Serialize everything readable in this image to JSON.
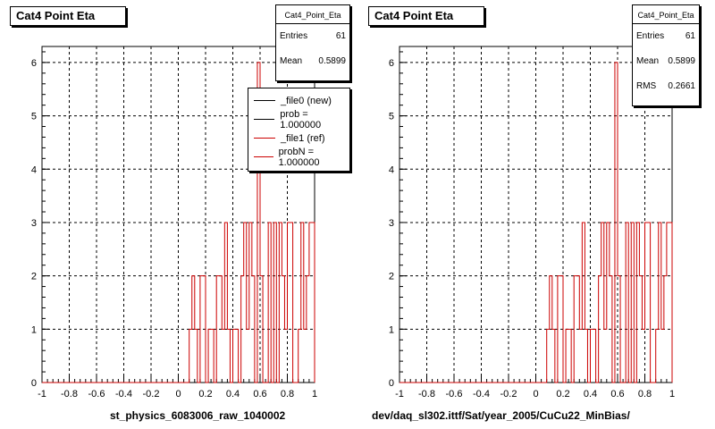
{
  "chart_data": [
    {
      "type": "bar",
      "title": "Cat4 Point Eta",
      "xlabel": "st_physics_6083006_raw_1040002",
      "ylabel": "",
      "xlim": [
        -1,
        1
      ],
      "ylim": [
        0,
        6.3
      ],
      "x_ticks": [
        "-1",
        "-0.8",
        "-0.6",
        "-0.4",
        "-0.2",
        "0",
        "0.2",
        "0.4",
        "0.6",
        "0.8",
        "1"
      ],
      "y_ticks": [
        "0",
        "1",
        "2",
        "3",
        "4",
        "5",
        "6"
      ],
      "grid": true,
      "bin_edges_start": -1,
      "bin_width": 0.02,
      "series": [
        {
          "name": "_file1 (ref)",
          "color": "#cc0000",
          "values": [
            0,
            0,
            0,
            0,
            0,
            0,
            0,
            0,
            0,
            0,
            0,
            0,
            0,
            0,
            0,
            0,
            0,
            0,
            0,
            0,
            0,
            0,
            0,
            0,
            0,
            0,
            0,
            0,
            0,
            0,
            0,
            0,
            0,
            0,
            0,
            0,
            0,
            0,
            0,
            0,
            0,
            0,
            0,
            0,
            0,
            0,
            0,
            0,
            0,
            0,
            0,
            0,
            0,
            0,
            1,
            2,
            1,
            0,
            2,
            2,
            0,
            1,
            1,
            0,
            2,
            2,
            1,
            3,
            1,
            0,
            1,
            1,
            0,
            2,
            3,
            1,
            3,
            2,
            0,
            6,
            2,
            0,
            0,
            3,
            0,
            3,
            0,
            3,
            2,
            1,
            3,
            3,
            0,
            0,
            1,
            3,
            1,
            2,
            3,
            3
          ]
        }
      ],
      "stats": {
        "name": "Cat4_Point_Eta",
        "entries": "61",
        "mean": "0.5899"
      },
      "legend": [
        {
          "label": "_file0 (new)",
          "color": "#000000"
        },
        {
          "label": "prob = 1.000000",
          "color": "#000000"
        },
        {
          "label": "_file1 (ref)",
          "color": "#cc0000"
        },
        {
          "label": "probN = 1.000000",
          "color": "#cc0000"
        }
      ]
    },
    {
      "type": "bar",
      "title": "Cat4 Point Eta",
      "xlabel": "dev/daq_sl302.ittf/Sat/year_2005/CuCu22_MinBias/",
      "ylabel": "",
      "xlim": [
        -1,
        1
      ],
      "ylim": [
        0,
        6.3
      ],
      "x_ticks": [
        "-1",
        "-0.8",
        "-0.6",
        "-0.4",
        "-0.2",
        "0",
        "0.2",
        "0.4",
        "0.6",
        "0.8",
        "1"
      ],
      "y_ticks": [
        "0",
        "1",
        "2",
        "3",
        "4",
        "5",
        "6"
      ],
      "grid": true,
      "bin_edges_start": -1,
      "bin_width": 0.02,
      "series": [
        {
          "name": "_file1 (ref)",
          "color": "#cc0000",
          "values": [
            0,
            0,
            0,
            0,
            0,
            0,
            0,
            0,
            0,
            0,
            0,
            0,
            0,
            0,
            0,
            0,
            0,
            0,
            0,
            0,
            0,
            0,
            0,
            0,
            0,
            0,
            0,
            0,
            0,
            0,
            0,
            0,
            0,
            0,
            0,
            0,
            0,
            0,
            0,
            0,
            0,
            0,
            0,
            0,
            0,
            0,
            0,
            0,
            0,
            0,
            0,
            0,
            0,
            0,
            1,
            2,
            1,
            0,
            2,
            2,
            0,
            1,
            1,
            0,
            2,
            2,
            1,
            3,
            1,
            0,
            1,
            1,
            0,
            2,
            3,
            1,
            3,
            2,
            0,
            6,
            2,
            0,
            0,
            3,
            0,
            3,
            0,
            3,
            2,
            1,
            3,
            3,
            0,
            0,
            1,
            3,
            1,
            2,
            3,
            3
          ]
        }
      ],
      "stats": {
        "name": "Cat4_Point_Eta",
        "entries": "61",
        "mean": "0.5899",
        "rms": "0.2661"
      }
    }
  ],
  "stats_labels": {
    "entries": "Entries",
    "mean": "Mean",
    "rms": "RMS"
  }
}
